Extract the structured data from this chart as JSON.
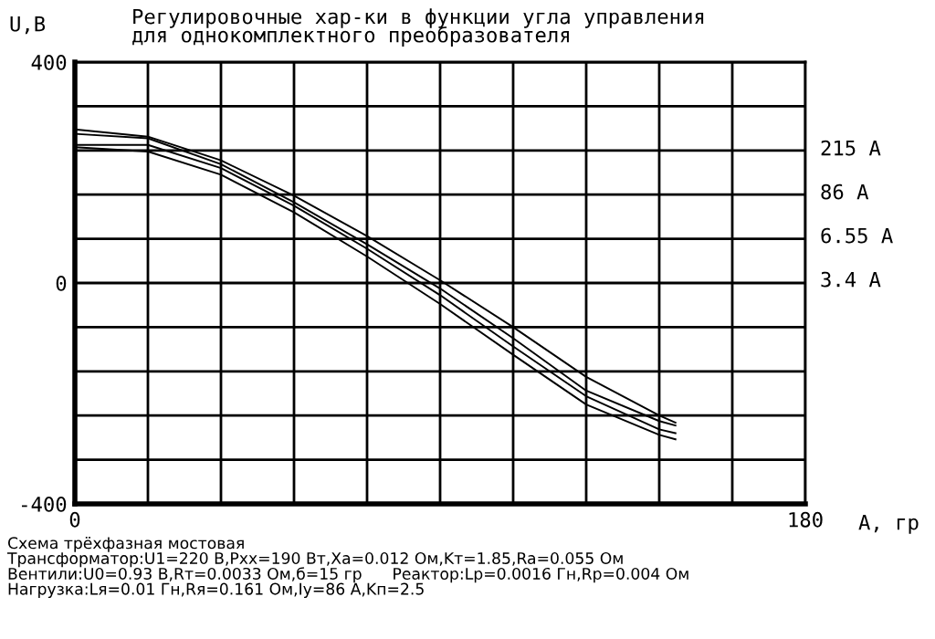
{
  "chart_data": {
    "type": "line",
    "title": "Регулировочные хар-ки в функции угла управления\nдля однокомплектного преобразователя",
    "xlabel": "A, гр",
    "ylabel": "U,B",
    "xlim": [
      0,
      180
    ],
    "ylim": [
      -400,
      400
    ],
    "xticks": [
      0,
      {
        "value": 18,
        "label": null
      },
      {
        "value": 36,
        "label": null
      },
      {
        "value": 54,
        "label": null
      },
      {
        "value": 72,
        "label": null
      },
      {
        "value": 90,
        "label": null
      },
      {
        "value": 108,
        "label": null
      },
      {
        "value": 126,
        "label": null
      },
      {
        "value": 144,
        "label": null
      },
      {
        "value": 162,
        "label": null
      },
      180
    ],
    "yticks": [
      -400,
      {
        "value": -320,
        "label": null
      },
      {
        "value": -240,
        "label": null
      },
      {
        "value": -160,
        "label": null
      },
      {
        "value": -80,
        "label": null
      },
      0,
      {
        "value": 80,
        "label": null
      },
      {
        "value": 160,
        "label": null
      },
      {
        "value": 240,
        "label": null
      },
      {
        "value": 320,
        "label": null
      },
      400
    ],
    "grid": true,
    "line_style": "solid",
    "marker": "none",
    "series": [
      {
        "color": "#000000",
        "x": [
          0,
          18,
          36,
          54,
          72,
          90,
          108,
          126,
          144,
          148
        ],
        "values": [
          278,
          265,
          222,
          158,
          85,
          5,
          -80,
          -170,
          -240,
          -253
        ]
      },
      {
        "color": "#000000",
        "x": [
          0,
          18,
          36,
          54,
          72,
          90,
          108,
          126,
          144,
          148
        ],
        "values": [
          270,
          262,
          215,
          146,
          70,
          -10,
          -100,
          -195,
          -250,
          -258
        ]
      },
      {
        "color": "#000000",
        "x": [
          0,
          18,
          36,
          54,
          72,
          90,
          108,
          126,
          144,
          148
        ],
        "values": [
          250,
          250,
          208,
          140,
          62,
          -22,
          -115,
          -205,
          -265,
          -272
        ]
      },
      {
        "color": "#000000",
        "x": [
          0,
          18,
          36,
          54,
          72,
          90,
          108,
          126,
          144,
          148
        ],
        "values": [
          246,
          238,
          196,
          128,
          48,
          -38,
          -130,
          -220,
          -275,
          -283
        ]
      }
    ],
    "annotations": [
      "215 A",
      "86 A",
      "6.55 A",
      "3.4 A",
      "Схема трёхфазная мостовая\nТрансформатор:U1=220 B,Pxx=190 Bт,Xa=0.012 Ом,Kт=1.85,Ra=0.055 Ом\nВентили:U0=0.93 B,Rт=0.0033 Ом,б=15 гр      Реактор:Lp=0.0016 Гн,Rp=0.004 Ом\nНагрузка:Lя=0.01 Гн,Rя=0.161 Ом,Iy=86 A,Kп=2.5"
    ]
  }
}
